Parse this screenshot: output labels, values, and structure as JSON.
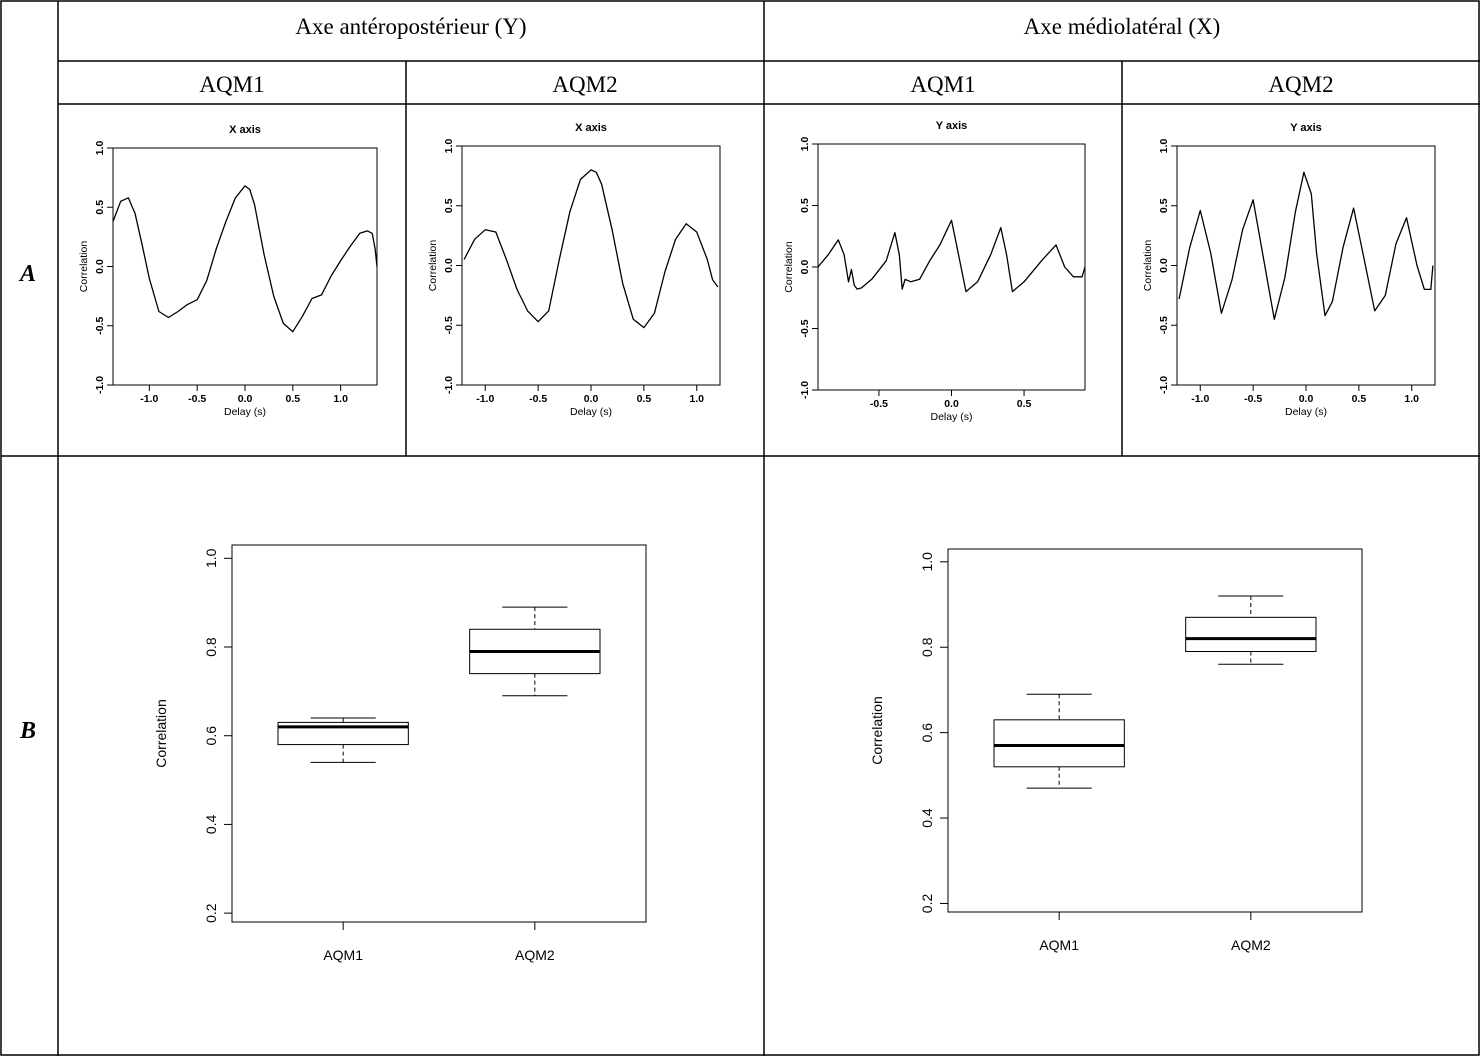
{
  "table": {
    "header_left": "Axe antéropostérieur (Y)",
    "header_right": "Axe médiolatéral (X)",
    "sub_headers": [
      "AQM1",
      "AQM2",
      "AQM1",
      "AQM2"
    ],
    "row_a_label": "A",
    "row_b_label": "B"
  },
  "chart_data": [
    {
      "type": "line",
      "title": "X axis",
      "xlabel": "Delay (s)",
      "ylabel": "Correlation",
      "xlim": [
        -1.38,
        1.38
      ],
      "ylim": [
        -1.0,
        1.0
      ],
      "xticks": [
        "-1.0",
        "-0.5",
        "0.0",
        "0.5",
        "1.0"
      ],
      "xtick_values": [
        -1.0,
        -0.5,
        0.0,
        0.5,
        1.0
      ],
      "yticks": [
        "-1.0",
        "-0.5",
        "0.0",
        "0.5",
        "1.0"
      ],
      "ytick_values": [
        -1.0,
        -0.5,
        0.0,
        0.5,
        1.0
      ],
      "x": [
        -1.38,
        -1.3,
        -1.22,
        -1.15,
        -1.08,
        -1.0,
        -0.9,
        -0.8,
        -0.7,
        -0.6,
        -0.5,
        -0.4,
        -0.3,
        -0.2,
        -0.1,
        0.0,
        0.05,
        0.1,
        0.2,
        0.3,
        0.4,
        0.5,
        0.6,
        0.7,
        0.8,
        0.9,
        1.0,
        1.1,
        1.2,
        1.28,
        1.33,
        1.36,
        1.38
      ],
      "y": [
        0.38,
        0.55,
        0.58,
        0.45,
        0.2,
        -0.1,
        -0.38,
        -0.43,
        -0.38,
        -0.32,
        -0.28,
        -0.12,
        0.15,
        0.38,
        0.58,
        0.68,
        0.65,
        0.52,
        0.1,
        -0.25,
        -0.48,
        -0.55,
        -0.42,
        -0.27,
        -0.24,
        -0.08,
        0.05,
        0.17,
        0.28,
        0.3,
        0.28,
        0.15,
        0.0
      ]
    },
    {
      "type": "line",
      "title": "X axis",
      "xlabel": "Delay (s)",
      "ylabel": "Correlation",
      "xlim": [
        -1.22,
        1.22
      ],
      "ylim": [
        -1.0,
        1.0
      ],
      "xticks": [
        "-1.0",
        "-0.5",
        "0.0",
        "0.5",
        "1.0"
      ],
      "xtick_values": [
        -1.0,
        -0.5,
        0.0,
        0.5,
        1.0
      ],
      "yticks": [
        "-1.0",
        "-0.5",
        "0.0",
        "0.5",
        "1.0"
      ],
      "ytick_values": [
        -1.0,
        -0.5,
        0.0,
        0.5,
        1.0
      ],
      "x": [
        -1.2,
        -1.1,
        -1.0,
        -0.9,
        -0.8,
        -0.7,
        -0.6,
        -0.5,
        -0.4,
        -0.3,
        -0.2,
        -0.1,
        0.0,
        0.05,
        0.1,
        0.2,
        0.3,
        0.4,
        0.5,
        0.6,
        0.7,
        0.8,
        0.9,
        1.0,
        1.1,
        1.15,
        1.2
      ],
      "y": [
        0.05,
        0.22,
        0.3,
        0.28,
        0.05,
        -0.2,
        -0.38,
        -0.47,
        -0.38,
        0.05,
        0.45,
        0.72,
        0.8,
        0.78,
        0.68,
        0.3,
        -0.15,
        -0.45,
        -0.52,
        -0.4,
        -0.05,
        0.22,
        0.35,
        0.28,
        0.05,
        -0.12,
        -0.18
      ]
    },
    {
      "type": "line",
      "title": "Y axis",
      "xlabel": "Delay (s)",
      "ylabel": "Correlation",
      "xlim": [
        -0.92,
        0.92
      ],
      "ylim": [
        -1.0,
        1.0
      ],
      "xticks": [
        "-0.5",
        "0.0",
        "0.5"
      ],
      "xtick_values": [
        -0.5,
        0.0,
        0.5
      ],
      "yticks": [
        "-1.0",
        "-0.5",
        "0.0",
        "0.5",
        "1.0"
      ],
      "ytick_values": [
        -1.0,
        -0.5,
        0.0,
        0.5,
        1.0
      ],
      "x": [
        -0.92,
        -0.85,
        -0.78,
        -0.74,
        -0.71,
        -0.69,
        -0.67,
        -0.65,
        -0.62,
        -0.55,
        -0.45,
        -0.39,
        -0.36,
        -0.34,
        -0.32,
        -0.28,
        -0.22,
        -0.15,
        -0.08,
        0.0,
        0.04,
        0.1,
        0.18,
        0.27,
        0.34,
        0.38,
        0.42,
        0.5,
        0.62,
        0.72,
        0.78,
        0.84,
        0.9,
        0.92
      ],
      "y": [
        0.0,
        0.1,
        0.22,
        0.1,
        -0.12,
        -0.02,
        -0.15,
        -0.18,
        -0.17,
        -0.1,
        0.05,
        0.28,
        0.1,
        -0.18,
        -0.1,
        -0.12,
        -0.1,
        0.05,
        0.18,
        0.38,
        0.15,
        -0.2,
        -0.12,
        0.1,
        0.32,
        0.1,
        -0.2,
        -0.12,
        0.05,
        0.18,
        0.0,
        -0.08,
        -0.08,
        0.0
      ]
    },
    {
      "type": "line",
      "title": "Y axis",
      "xlabel": "Delay (s)",
      "ylabel": "Correlation",
      "xlim": [
        -1.22,
        1.22
      ],
      "ylim": [
        -1.0,
        1.0
      ],
      "xticks": [
        "-1.0",
        "-0.5",
        "0.0",
        "0.5",
        "1.0"
      ],
      "xtick_values": [
        -1.0,
        -0.5,
        0.0,
        0.5,
        1.0
      ],
      "yticks": [
        "-1.0",
        "-0.5",
        "0.0",
        "0.5",
        "1.0"
      ],
      "ytick_values": [
        -1.0,
        -0.5,
        0.0,
        0.5,
        1.0
      ],
      "x": [
        -1.2,
        -1.1,
        -1.0,
        -0.9,
        -0.8,
        -0.7,
        -0.6,
        -0.5,
        -0.4,
        -0.3,
        -0.2,
        -0.1,
        -0.02,
        0.05,
        0.1,
        0.18,
        0.25,
        0.35,
        0.45,
        0.55,
        0.65,
        0.75,
        0.85,
        0.95,
        1.05,
        1.12,
        1.18,
        1.2
      ],
      "y": [
        -0.28,
        0.15,
        0.46,
        0.1,
        -0.4,
        -0.12,
        0.3,
        0.55,
        0.05,
        -0.45,
        -0.1,
        0.45,
        0.78,
        0.6,
        0.1,
        -0.42,
        -0.3,
        0.15,
        0.48,
        0.05,
        -0.38,
        -0.25,
        0.18,
        0.4,
        0.0,
        -0.2,
        -0.2,
        0.0
      ]
    },
    {
      "type": "box",
      "ylabel": "Correlation",
      "ylim": [
        0.18,
        1.03
      ],
      "yticks": [
        "0.2",
        "0.4",
        "0.6",
        "0.8",
        "1.0"
      ],
      "ytick_values": [
        0.2,
        0.4,
        0.6,
        0.8,
        1.0
      ],
      "categories": [
        "AQM1",
        "AQM2"
      ],
      "boxes": [
        {
          "min": 0.54,
          "q1": 0.58,
          "median": 0.62,
          "q3": 0.63,
          "max": 0.64
        },
        {
          "min": 0.69,
          "q1": 0.74,
          "median": 0.79,
          "q3": 0.84,
          "max": 0.89
        }
      ]
    },
    {
      "type": "box",
      "ylabel": "Correlation",
      "ylim": [
        0.18,
        1.03
      ],
      "yticks": [
        "0.2",
        "0.4",
        "0.6",
        "0.8",
        "1.0"
      ],
      "ytick_values": [
        0.2,
        0.4,
        0.6,
        0.8,
        1.0
      ],
      "categories": [
        "AQM1",
        "AQM2"
      ],
      "boxes": [
        {
          "min": 0.47,
          "q1": 0.52,
          "median": 0.57,
          "q3": 0.63,
          "max": 0.69
        },
        {
          "min": 0.76,
          "q1": 0.79,
          "median": 0.82,
          "q3": 0.87,
          "max": 0.92
        }
      ]
    }
  ]
}
